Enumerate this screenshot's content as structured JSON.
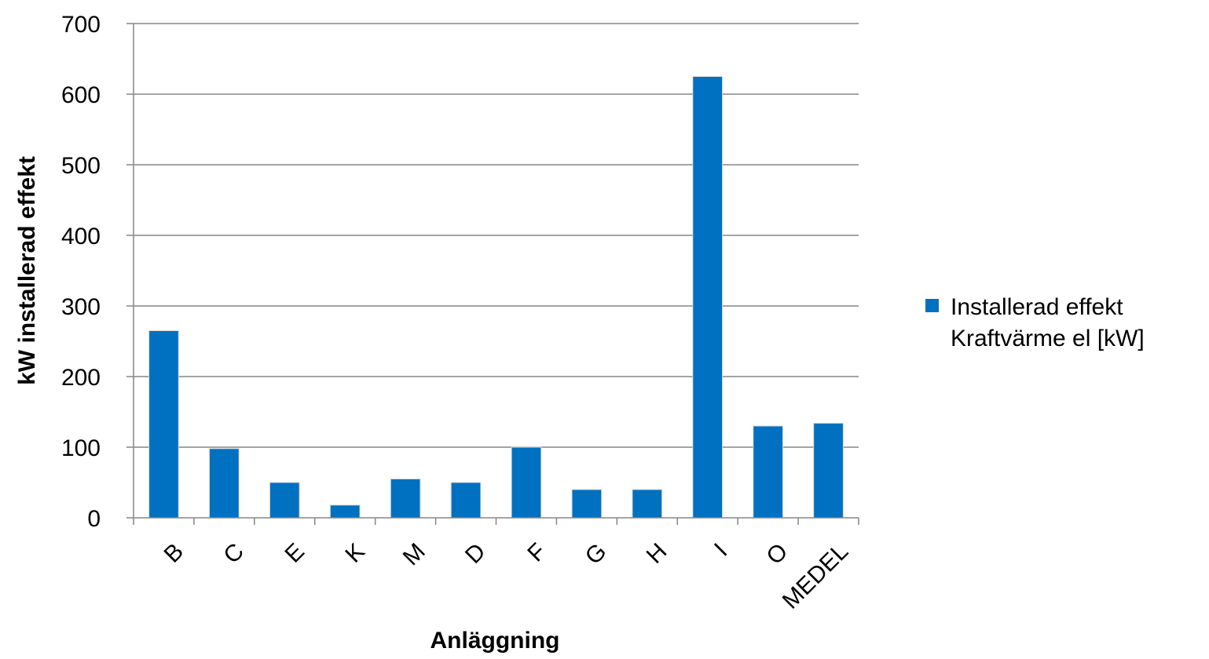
{
  "chart_data": {
    "type": "bar",
    "categories": [
      "B",
      "C",
      "E",
      "K",
      "M",
      "D",
      "F",
      "G",
      "H",
      "I",
      "O",
      "MEDEL"
    ],
    "series": [
      {
        "name": "Installerad effekt Kraftvärme el [kW]",
        "legend_lines": [
          "Installerad effekt",
          "Kraftvärme el [kW]"
        ],
        "values": [
          265,
          98,
          50,
          18,
          55,
          50,
          100,
          40,
          40,
          625,
          130,
          134
        ],
        "color": "#0070C0"
      }
    ],
    "yticks": [
      "0",
      "100",
      "200",
      "300",
      "400",
      "500",
      "600",
      "700"
    ],
    "ylim": [
      0,
      700
    ],
    "xlabel": "Anläggning",
    "ylabel": "kW installerad effekt",
    "grid": true,
    "legend_position": "right"
  }
}
